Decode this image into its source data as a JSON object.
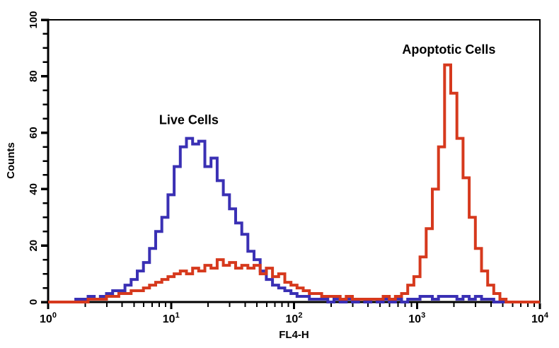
{
  "chart_data": {
    "type": "line",
    "subtype": "step-histogram",
    "title": "",
    "xlabel": "FL4-H",
    "ylabel": "Counts",
    "x_scale": "log10",
    "x_range_log": [
      0,
      4
    ],
    "x_decade_exponents": [
      0,
      1,
      2,
      3,
      4
    ],
    "x_minor_multiples": [
      2,
      3,
      4,
      5,
      6,
      7,
      8,
      9
    ],
    "ylim": [
      0,
      100
    ],
    "y_major_ticks": [
      0,
      20,
      40,
      60,
      80,
      100
    ],
    "y_minor_step": 5,
    "grid": false,
    "legend": "none",
    "x_log_start": 0,
    "x_log_step": 0.05,
    "series": [
      {
        "name": "Live Cells",
        "color": "#3a30b4",
        "values": [
          0,
          0,
          0,
          0,
          0,
          1,
          1,
          2,
          1,
          2,
          3,
          4,
          4,
          6,
          8,
          11,
          14,
          19,
          25,
          30,
          38,
          48,
          55,
          58,
          56,
          57,
          48,
          51,
          43,
          38,
          33,
          28,
          24,
          18,
          15,
          11,
          8,
          6,
          5,
          4,
          3,
          2,
          2,
          1,
          1,
          1,
          0,
          1,
          0,
          1,
          0,
          1,
          0,
          1,
          0,
          1,
          0,
          1,
          0,
          1,
          1,
          2,
          2,
          1,
          2,
          2,
          2,
          1,
          2,
          1,
          2,
          1,
          1,
          0,
          0,
          0,
          0,
          0,
          0,
          0,
          0
        ]
      },
      {
        "name": "Apoptotic Cells",
        "color": "#d6391d",
        "values": [
          0,
          0,
          0,
          0,
          0,
          0,
          0,
          1,
          1,
          1,
          2,
          2,
          3,
          3,
          4,
          4,
          5,
          6,
          7,
          8,
          9,
          10,
          11,
          10,
          12,
          11,
          13,
          12,
          15,
          13,
          14,
          12,
          13,
          12,
          13,
          10,
          12,
          9,
          10,
          7,
          6,
          5,
          4,
          3,
          3,
          2,
          2,
          2,
          1,
          2,
          1,
          1,
          1,
          1,
          1,
          2,
          1,
          2,
          3,
          6,
          9,
          16,
          26,
          40,
          55,
          84,
          74,
          58,
          44,
          30,
          19,
          11,
          6,
          3,
          1,
          0,
          0,
          0,
          0,
          0,
          0
        ]
      }
    ],
    "annotations": [
      {
        "text": "Live Cells",
        "color": "#1c1ba3",
        "x_log": 1.145,
        "y_counts": 63
      },
      {
        "text": "Apoptotic Cells",
        "color": "#c22026",
        "x_log": 3.26,
        "y_counts": 88
      }
    ]
  },
  "colors": {
    "background": "#ffffff",
    "axis": "#000000"
  }
}
